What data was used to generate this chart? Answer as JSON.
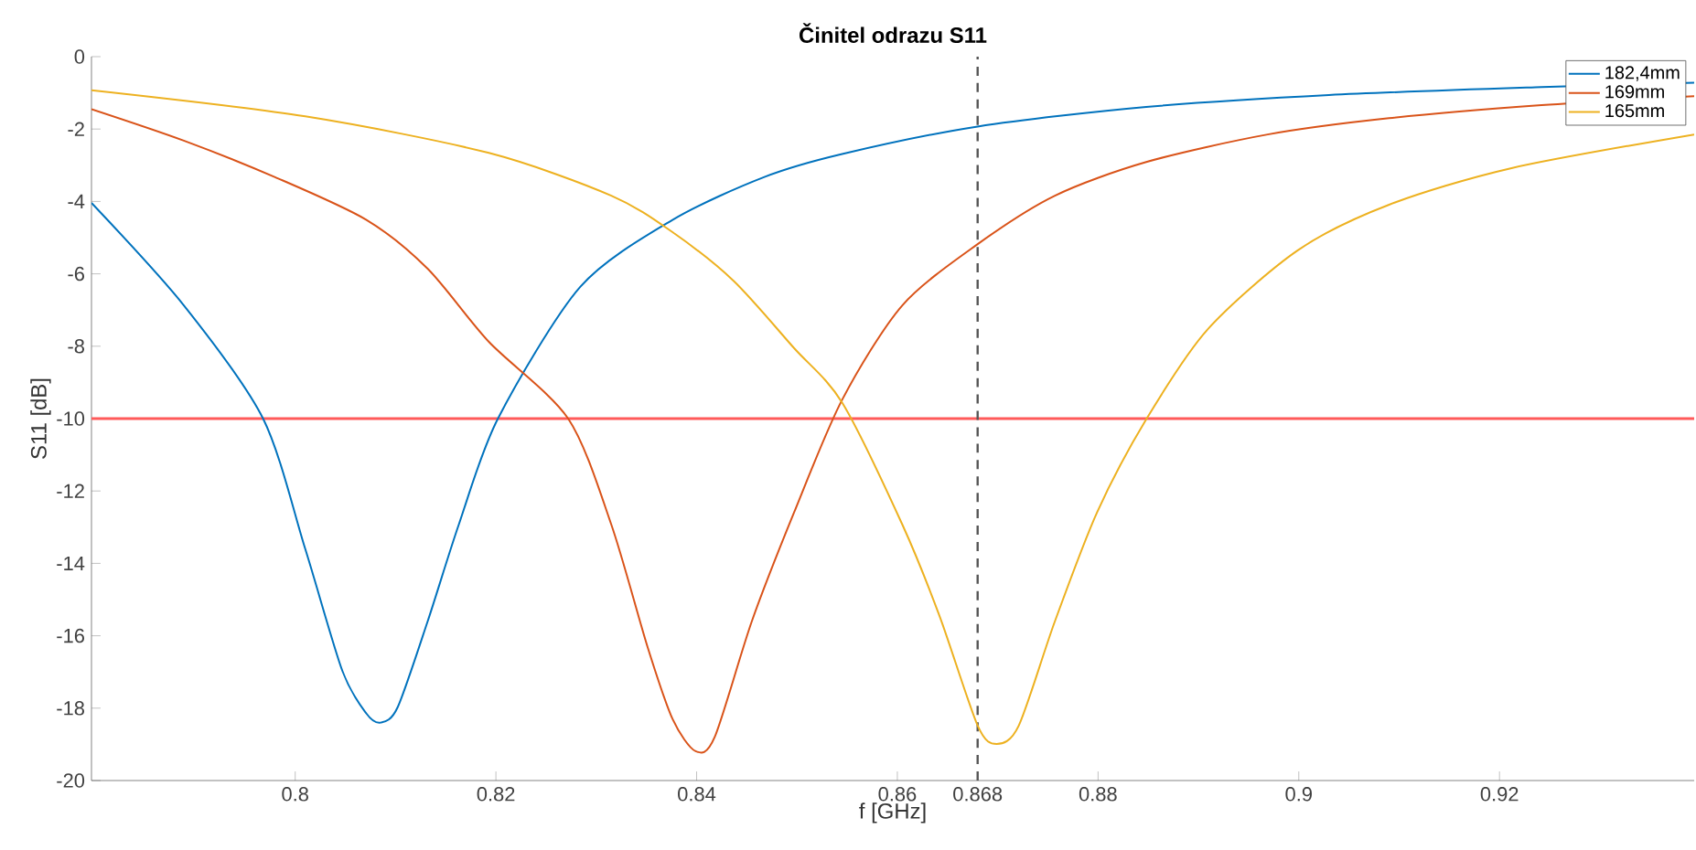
{
  "chart_data": {
    "type": "line",
    "title": "Činitel odrazu S11",
    "xlabel": "f [GHz]",
    "ylabel": "S11 [dB]",
    "xlim": [
      0.7797,
      0.9394
    ],
    "ylim": [
      -20,
      0
    ],
    "xticks": [
      0.8,
      0.82,
      0.84,
      0.86,
      0.868,
      0.88,
      0.9,
      0.92
    ],
    "yticks": [
      -20,
      -18,
      -16,
      -14,
      -12,
      -10,
      -8,
      -6,
      -4,
      -2,
      0
    ],
    "grid": false,
    "legend": "top right",
    "marker": "none",
    "line_style": "solid",
    "ref_lines": [
      {
        "axis": "y",
        "value": -10,
        "color": "#ff5a5a",
        "line_style": "solid"
      },
      {
        "axis": "x",
        "value": 0.868,
        "color": "#555555",
        "line_style": "dashed"
      }
    ],
    "series": [
      {
        "name": "182,4mm",
        "color": "#0072bd",
        "x": [
          0.7797,
          0.7889,
          0.7968,
          0.801,
          0.8047,
          0.8071,
          0.8085,
          0.8102,
          0.8132,
          0.8163,
          0.8202,
          0.8284,
          0.8376,
          0.8467,
          0.8545,
          0.868,
          0.8848,
          0.903,
          0.9242,
          0.9394
        ],
        "values": [
          -4.04,
          -6.87,
          -10.0,
          -13.6,
          -16.97,
          -18.15,
          -18.4,
          -17.98,
          -15.6,
          -12.93,
          -10.0,
          -6.36,
          -4.51,
          -3.33,
          -2.69,
          -1.93,
          -1.39,
          -1.06,
          -0.84,
          -0.72
        ]
      },
      {
        "name": "169mm",
        "color": "#d95319",
        "x": [
          0.7797,
          0.7889,
          0.798,
          0.8071,
          0.8132,
          0.8193,
          0.8272,
          0.8315,
          0.8351,
          0.8376,
          0.8399,
          0.8418,
          0.8455,
          0.8497,
          0.8545,
          0.8605,
          0.868,
          0.8757,
          0.8848,
          0.8969,
          0.909,
          0.9242,
          0.9394
        ],
        "values": [
          -1.45,
          -2.32,
          -3.33,
          -4.51,
          -5.86,
          -7.88,
          -10.0,
          -12.93,
          -16.3,
          -18.3,
          -19.19,
          -18.8,
          -15.6,
          -12.6,
          -9.48,
          -6.87,
          -5.18,
          -3.84,
          -2.91,
          -2.15,
          -1.7,
          -1.34,
          -1.09
        ]
      },
      {
        "name": "165mm",
        "color": "#edb120",
        "x": [
          0.7797,
          0.801,
          0.8193,
          0.8315,
          0.8376,
          0.8437,
          0.8497,
          0.8545,
          0.8605,
          0.8642,
          0.868,
          0.8699,
          0.8721,
          0.8757,
          0.8799,
          0.8848,
          0.8909,
          0.8999,
          0.909,
          0.9212,
          0.9394
        ],
        "values": [
          -0.93,
          -1.65,
          -2.66,
          -3.84,
          -4.85,
          -6.2,
          -8.05,
          -9.56,
          -12.93,
          -15.45,
          -18.48,
          -18.99,
          -18.48,
          -15.6,
          -12.59,
          -10.02,
          -7.54,
          -5.35,
          -4.09,
          -3.08,
          -2.15
        ]
      }
    ]
  }
}
